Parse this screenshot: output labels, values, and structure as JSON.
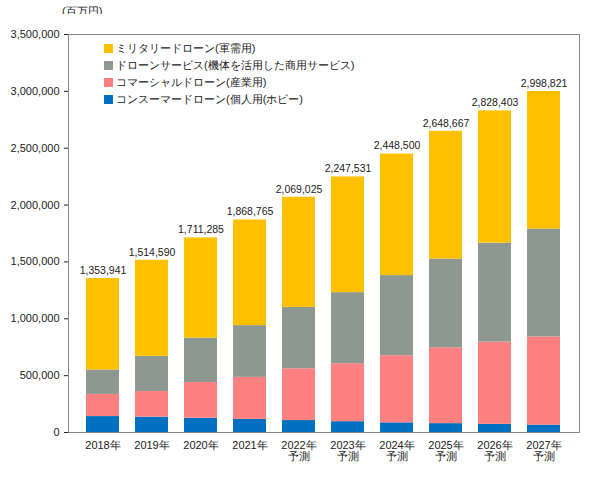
{
  "chart_data": {
    "type": "bar",
    "stacked": true,
    "y_label": "(百万円)",
    "categories": [
      "2018年",
      "2019年",
      "2020年",
      "2021年",
      "2022年\n予測",
      "2023年\n予測",
      "2024年\n予測",
      "2025年\n予測",
      "2026年\n予測",
      "2027年\n予測"
    ],
    "series": [
      {
        "name": "ミリタリードローン(軍需用)",
        "color": "#FFC000",
        "values": [
          803941,
          844590,
          881285,
          928765,
          969025,
          1017531,
          1068500,
          1123667,
          1163403,
          1208821
        ]
      },
      {
        "name": "ドローンサービス(機体を活用した商用サービス)",
        "color": "#8C9890",
        "values": [
          215000,
          310000,
          390000,
          455000,
          540000,
          625000,
          705000,
          780000,
          870000,
          950000
        ]
      },
      {
        "name": "コマーシャルドローン(産業用)",
        "color": "#FF8080",
        "values": [
          195000,
          225000,
          315000,
          370000,
          455000,
          510000,
          590000,
          667000,
          723000,
          775000
        ]
      },
      {
        "name": "コンスーマードローン(個人用(ホビー)",
        "color": "#0070C0",
        "values": [
          140000,
          135000,
          125000,
          115000,
          105000,
          95000,
          85000,
          78000,
          72000,
          65000
        ]
      }
    ],
    "totals": [
      1353941,
      1514590,
      1711285,
      1868765,
      2069025,
      2247531,
      2448500,
      2648667,
      2828403,
      2998821
    ],
    "total_labels": [
      "1,353,941",
      "1,514,590",
      "1,711,285",
      "1,868,765",
      "2,069,025",
      "2,247,531",
      "2,448,500",
      "2,648,667",
      "2,828,403",
      "2,998,821"
    ],
    "ylim": [
      0,
      3500000
    ],
    "yticks": [
      0,
      {
        "value": 500000,
        "label": "500,000"
      },
      {
        "value": 1000000,
        "label": "1,000,000"
      },
      {
        "value": 1500000,
        "label": "1,500,000"
      },
      {
        "value": 2000000,
        "label": "2,000,000"
      },
      {
        "value": 2500000,
        "label": "2,500,000"
      },
      {
        "value": 3000000,
        "label": "3,000,000"
      },
      {
        "value": 3500000,
        "label": "3,500,000"
      }
    ],
    "grid": false,
    "legend": "top-left"
  }
}
